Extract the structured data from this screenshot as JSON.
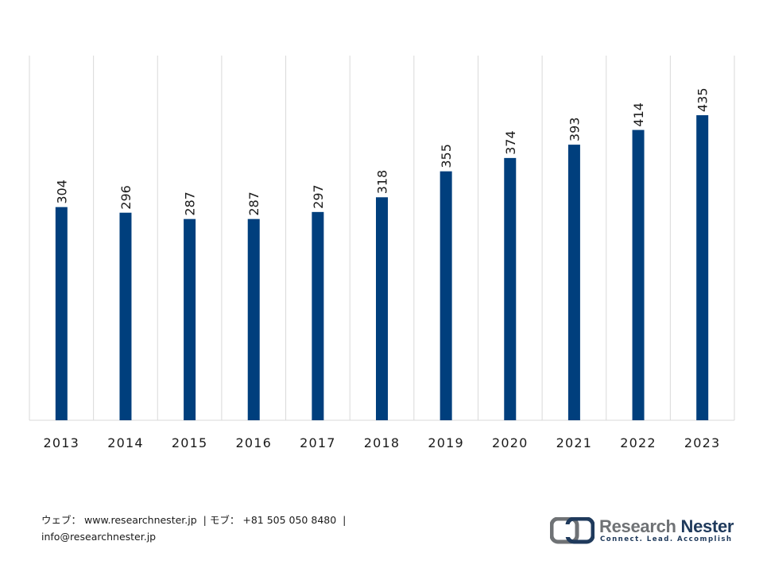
{
  "chart_data": {
    "type": "bar",
    "categories": [
      "2013",
      "2014",
      "2015",
      "2016",
      "2017",
      "2018",
      "2019",
      "2020",
      "2021",
      "2022",
      "2023"
    ],
    "values": [
      304,
      296,
      287,
      287,
      297,
      318,
      355,
      374,
      393,
      414,
      435
    ],
    "title": "",
    "xlabel": "",
    "ylabel": "",
    "ylim": [
      0,
      520
    ],
    "grid": "vertical",
    "legend": "none",
    "data_labels": "rotated-above-bars",
    "bar_color": "#003f7d",
    "grid_color": "#d9d9d9"
  },
  "footer": {
    "web_label": "ウェブ：",
    "web_url": "www.researchnester.jp",
    "separator": "|",
    "phone_label": "モブ：",
    "phone": "+81 505 050 8480",
    "email": "info@researchnester.jp"
  },
  "brand": {
    "logo_icon": "research-nester-logo-icon",
    "name_part1": "Research",
    "name_part2": "Nester",
    "tagline": "Connect. Lead. Accomplish",
    "color_grey": "#6f7275",
    "color_navy": "#1f3a5c"
  }
}
